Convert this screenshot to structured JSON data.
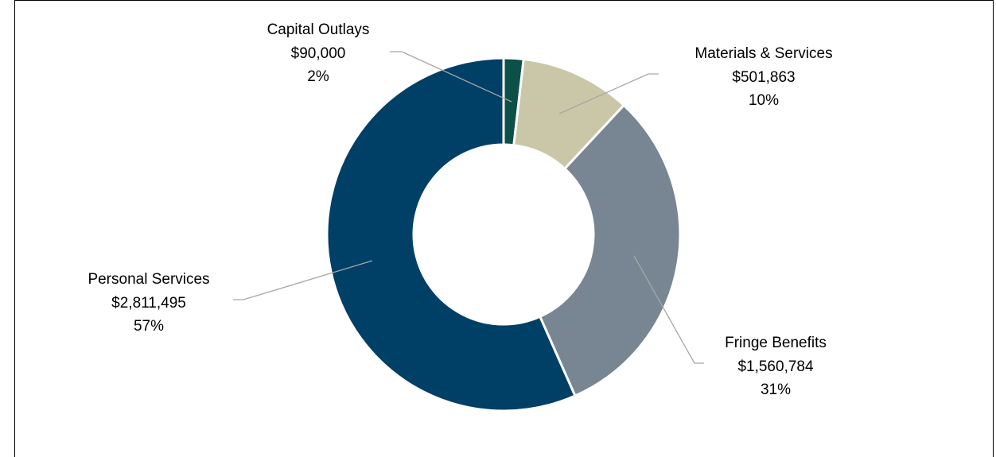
{
  "chart_data": {
    "type": "donut",
    "categories": [
      "Capital Outlays",
      "Materials & Services",
      "Fringe Benefits",
      "Personal Services"
    ],
    "values": [
      90000,
      501863,
      1560784,
      2811495
    ],
    "value_labels": [
      "$90,000",
      "$501,863",
      "$1,560,784",
      "$2,811,495"
    ],
    "percentages": [
      2,
      10,
      31,
      57
    ],
    "percentage_labels": [
      "2%",
      "10%",
      "31%",
      "57%"
    ],
    "colors": [
      "#0d5048",
      "#c9c7a7",
      "#778692",
      "#003f66"
    ]
  }
}
